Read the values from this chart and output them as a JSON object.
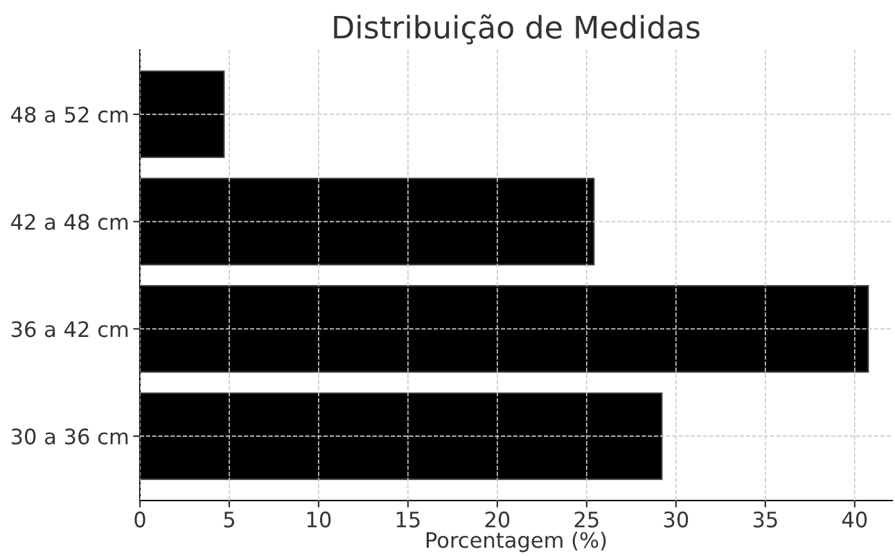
{
  "chart_data": {
    "type": "bar",
    "orientation": "horizontal",
    "title": "Distribuição de Medidas",
    "xlabel": "Porcentagem (%)",
    "categories": [
      "48 a 52 cm",
      "42 a 48 cm",
      "36 a 42 cm",
      "30 a 36 cm"
    ],
    "values": [
      4.7,
      25.4,
      40.75,
      29.2
    ],
    "color": "#000000",
    "xlim": [
      0,
      42.1
    ],
    "xticks": [
      0,
      5,
      10,
      15,
      20,
      25,
      30,
      35,
      40
    ],
    "grid": true
  }
}
